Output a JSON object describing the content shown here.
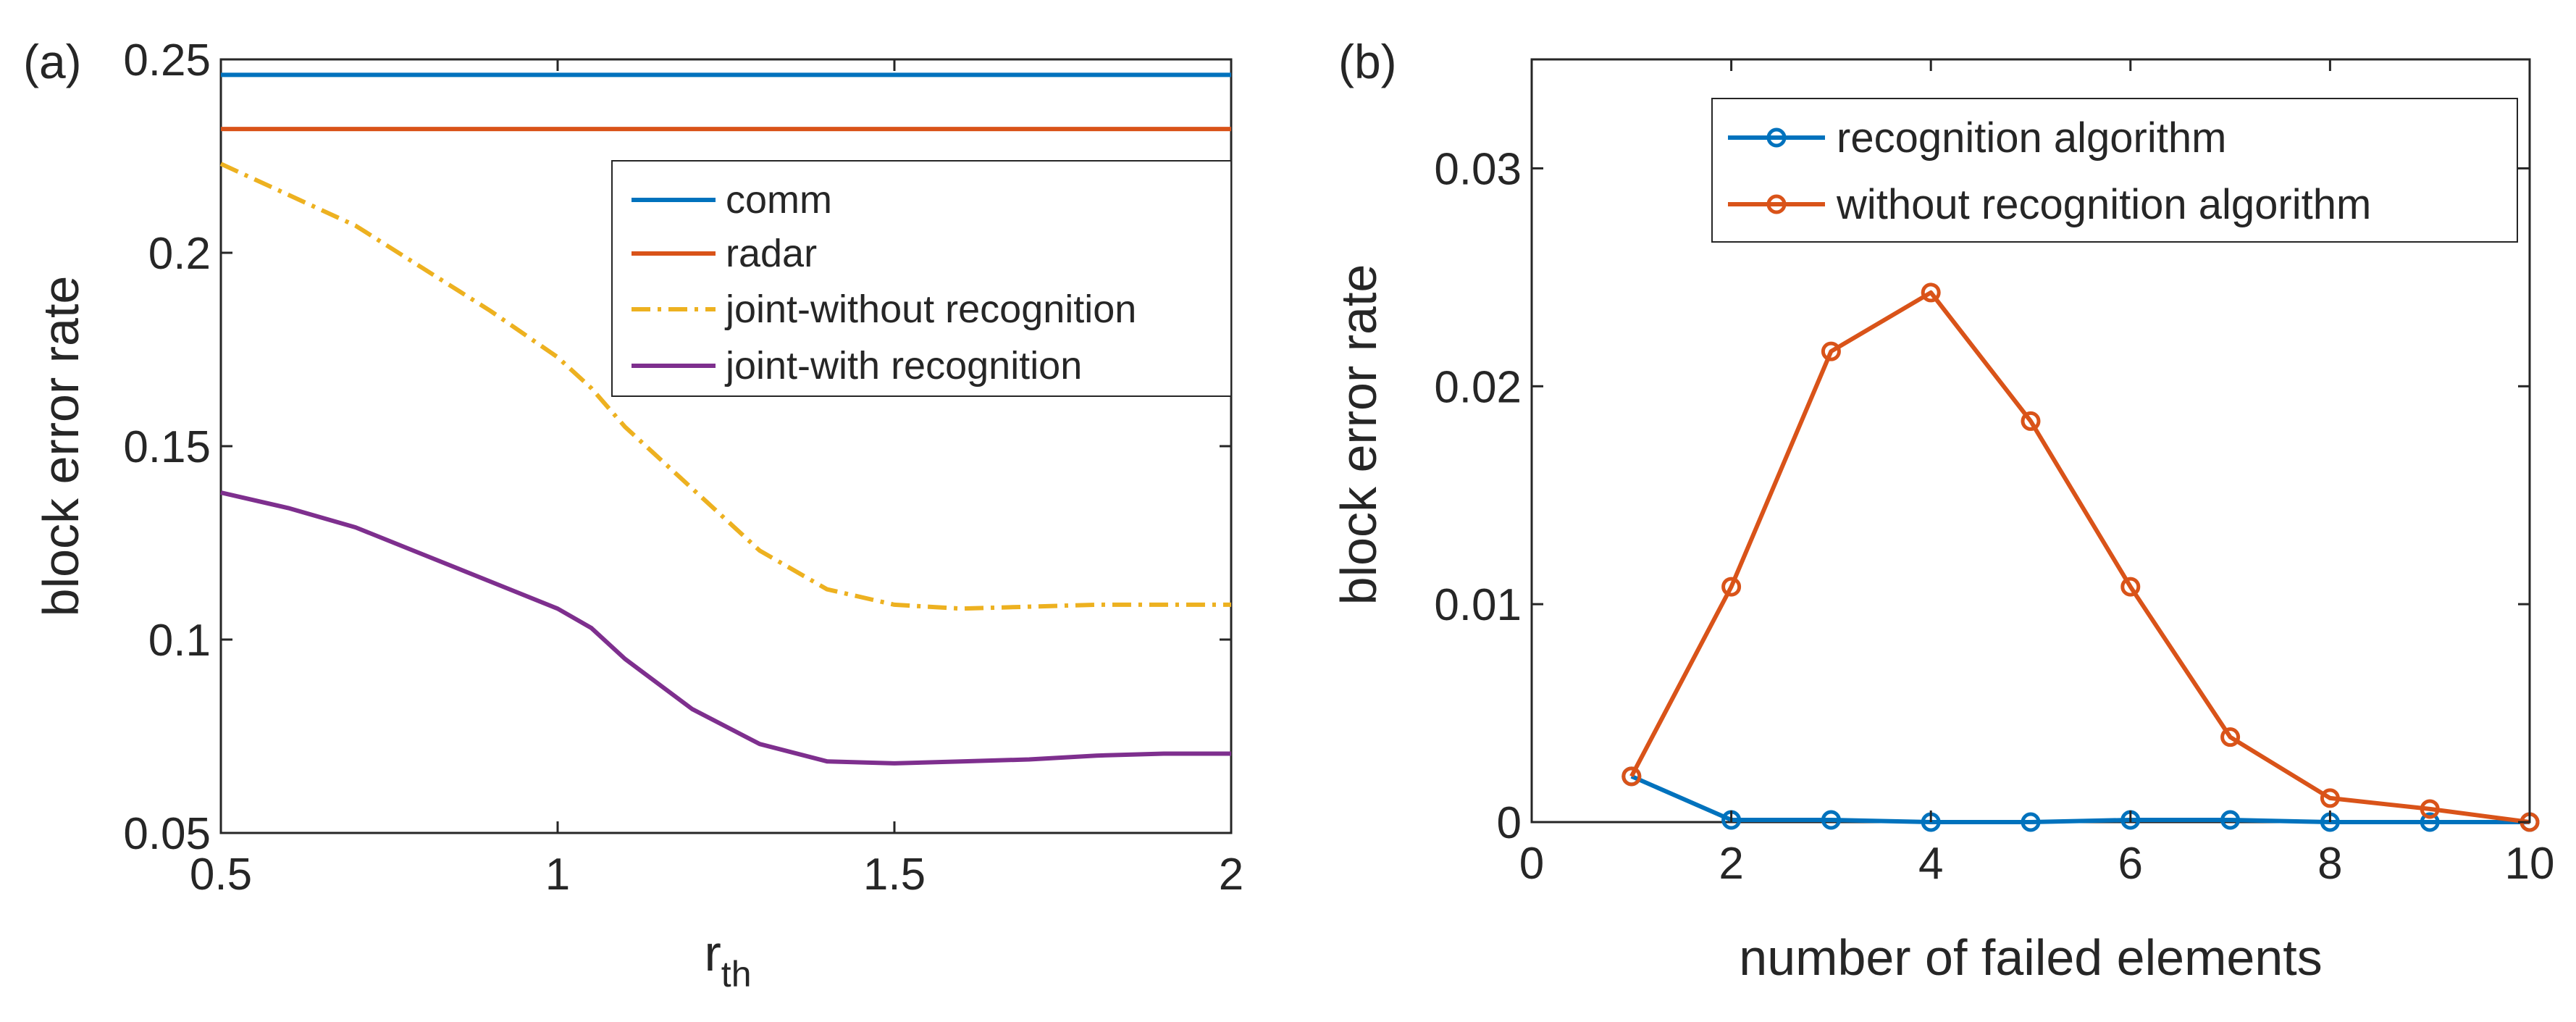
{
  "chart_data": [
    {
      "panel_label": "(a)",
      "type": "line",
      "title": "",
      "xlabel": "r",
      "xlabel_sub": "th",
      "ylabel": "block error rate",
      "xlim": [
        0.5,
        2
      ],
      "ylim": [
        0.05,
        0.25
      ],
      "xticks": [
        0.5,
        1,
        1.5,
        2
      ],
      "xtick_labels": [
        "0.5",
        "1",
        "1.5",
        "2"
      ],
      "yticks": [
        0.05,
        0.1,
        0.15,
        0.2,
        0.25
      ],
      "ytick_labels": [
        "0.05",
        "0.1",
        "0.15",
        "0.2",
        "0.25"
      ],
      "grid": false,
      "legend_position": "top-right",
      "series": [
        {
          "name": "comm",
          "color": "#0072BD",
          "style": "solid",
          "x": [
            0.5,
            2.0
          ],
          "y": [
            0.246,
            0.246
          ]
        },
        {
          "name": "radar",
          "color": "#D95319",
          "style": "solid",
          "x": [
            0.5,
            2.0
          ],
          "y": [
            0.232,
            0.232
          ]
        },
        {
          "name": "joint-without recognition",
          "color": "#EDB120",
          "style": "dashdot",
          "x": [
            0.5,
            0.6,
            0.7,
            0.8,
            0.9,
            1.0,
            1.05,
            1.1,
            1.2,
            1.3,
            1.4,
            1.5,
            1.6,
            1.7,
            1.8,
            1.9,
            2.0
          ],
          "y": [
            0.223,
            0.215,
            0.207,
            0.196,
            0.185,
            0.173,
            0.165,
            0.155,
            0.139,
            0.123,
            0.113,
            0.109,
            0.108,
            0.1085,
            0.109,
            0.109,
            0.109
          ]
        },
        {
          "name": "joint-with recognition",
          "color": "#7E2F8E",
          "style": "solid",
          "x": [
            0.5,
            0.6,
            0.7,
            0.8,
            0.9,
            1.0,
            1.05,
            1.1,
            1.2,
            1.3,
            1.4,
            1.5,
            1.6,
            1.7,
            1.8,
            1.9,
            2.0
          ],
          "y": [
            0.138,
            0.134,
            0.129,
            0.122,
            0.115,
            0.108,
            0.103,
            0.095,
            0.082,
            0.073,
            0.0685,
            0.068,
            0.0685,
            0.069,
            0.07,
            0.0705,
            0.0705
          ]
        }
      ]
    },
    {
      "panel_label": "(b)",
      "type": "line",
      "title": "",
      "xlabel": "number of failed elements",
      "ylabel": "block error rate",
      "xlim": [
        0,
        10
      ],
      "ylim": [
        0,
        0.035
      ],
      "xticks": [
        0,
        2,
        4,
        6,
        8,
        10
      ],
      "xtick_labels": [
        "0",
        "2",
        "4",
        "6",
        "8",
        "10"
      ],
      "yticks": [
        0,
        0.01,
        0.02,
        0.03
      ],
      "ytick_labels": [
        "0",
        "0.01",
        "0.02",
        "0.03"
      ],
      "grid": false,
      "legend_position": "top-right",
      "markers": "circle",
      "series": [
        {
          "name": "recognition algorithm",
          "color": "#0072BD",
          "x": [
            1,
            2,
            3,
            4,
            5,
            6,
            7,
            8,
            9,
            10
          ],
          "y": [
            0.0021,
            0.0001,
            0.0001,
            0.0,
            0.0,
            0.0001,
            0.0001,
            0.0,
            0.0,
            0.0
          ]
        },
        {
          "name": "without recognition algorithm",
          "color": "#D95319",
          "x": [
            1,
            2,
            3,
            4,
            5,
            6,
            7,
            8,
            9,
            10
          ],
          "y": [
            0.0021,
            0.0108,
            0.0216,
            0.0243,
            0.0184,
            0.0108,
            0.0039,
            0.0011,
            0.0006,
            0.0
          ]
        }
      ]
    }
  ]
}
